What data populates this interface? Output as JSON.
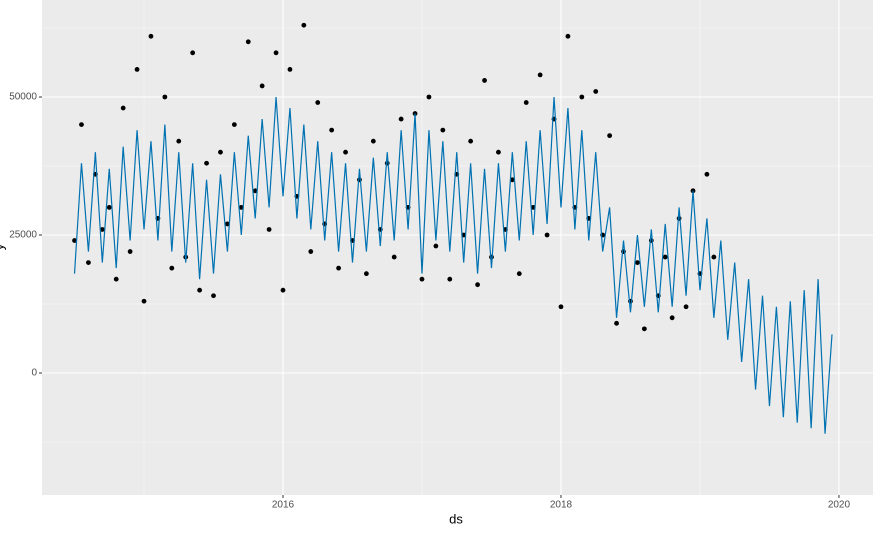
{
  "chart_data": {
    "type": "line",
    "xlabel": "ds",
    "ylabel": "y",
    "xlim": [
      2014.266,
      2020.245
    ],
    "xticks": [
      2016,
      2018,
      2020
    ],
    "ylim": [
      -22100,
      67570
    ],
    "yticks": [
      0,
      25000,
      50000
    ],
    "grid": true,
    "series": [
      {
        "type": "scatter",
        "color": "#000000",
        "x": [
          2014.5,
          2014.55,
          2014.6,
          2014.65,
          2014.7,
          2014.75,
          2014.8,
          2014.85,
          2014.9,
          2014.95,
          2015.0,
          2015.05,
          2015.1,
          2015.15,
          2015.2,
          2015.25,
          2015.3,
          2015.35,
          2015.4,
          2015.45,
          2015.5,
          2015.55,
          2015.6,
          2015.65,
          2015.7,
          2015.75,
          2015.8,
          2015.85,
          2015.9,
          2015.95,
          2016.0,
          2016.05,
          2016.1,
          2016.15,
          2016.2,
          2016.25,
          2016.3,
          2016.35,
          2016.4,
          2016.45,
          2016.5,
          2016.55,
          2016.6,
          2016.65,
          2016.7,
          2016.75,
          2016.8,
          2016.85,
          2016.9,
          2016.95,
          2017.0,
          2017.05,
          2017.1,
          2017.15,
          2017.2,
          2017.25,
          2017.3,
          2017.35,
          2017.4,
          2017.45,
          2017.5,
          2017.55,
          2017.6,
          2017.65,
          2017.7,
          2017.75,
          2017.8,
          2017.85,
          2017.9,
          2017.95,
          2018.0,
          2018.05,
          2018.1,
          2018.15,
          2018.2,
          2018.25,
          2018.3,
          2018.35,
          2018.4,
          2018.45,
          2018.5,
          2018.55,
          2018.6,
          2018.65,
          2018.7,
          2018.75,
          2018.8,
          2018.85,
          2018.9,
          2018.95,
          2019.0,
          2019.05,
          2019.1
        ],
        "values": [
          24000,
          45000,
          20000,
          36000,
          26000,
          30000,
          17000,
          48000,
          22000,
          55000,
          13000,
          61000,
          28000,
          50000,
          19000,
          42000,
          21000,
          58000,
          15000,
          38000,
          14000,
          40000,
          27000,
          45000,
          30000,
          60000,
          33000,
          52000,
          26000,
          58000,
          15000,
          55000,
          32000,
          63000,
          22000,
          49000,
          27000,
          44000,
          19000,
          40000,
          24000,
          35000,
          18000,
          42000,
          26000,
          38000,
          21000,
          46000,
          30000,
          47000,
          17000,
          50000,
          23000,
          44000,
          17000,
          36000,
          25000,
          42000,
          16000,
          53000,
          21000,
          40000,
          26000,
          35000,
          18000,
          49000,
          30000,
          54000,
          25000,
          46000,
          12000,
          61000,
          30000,
          50000,
          28000,
          51000,
          25000,
          43000,
          9000,
          22000,
          13000,
          20000,
          8000,
          24000,
          14000,
          21000,
          10000,
          28000,
          12000,
          33000,
          18000,
          36000,
          21000
        ]
      },
      {
        "type": "line",
        "color": "#0072B2",
        "x": [
          2014.5,
          2014.55,
          2014.6,
          2014.65,
          2014.7,
          2014.75,
          2014.8,
          2014.85,
          2014.9,
          2014.95,
          2015.0,
          2015.05,
          2015.1,
          2015.15,
          2015.2,
          2015.25,
          2015.3,
          2015.35,
          2015.4,
          2015.45,
          2015.5,
          2015.55,
          2015.6,
          2015.65,
          2015.7,
          2015.75,
          2015.8,
          2015.85,
          2015.9,
          2015.95,
          2016.0,
          2016.05,
          2016.1,
          2016.15,
          2016.2,
          2016.25,
          2016.3,
          2016.35,
          2016.4,
          2016.45,
          2016.5,
          2016.55,
          2016.6,
          2016.65,
          2016.7,
          2016.75,
          2016.8,
          2016.85,
          2016.9,
          2016.95,
          2017.0,
          2017.05,
          2017.1,
          2017.15,
          2017.2,
          2017.25,
          2017.3,
          2017.35,
          2017.4,
          2017.45,
          2017.5,
          2017.55,
          2017.6,
          2017.65,
          2017.7,
          2017.75,
          2017.8,
          2017.85,
          2017.9,
          2017.95,
          2018.0,
          2018.05,
          2018.1,
          2018.15,
          2018.2,
          2018.25,
          2018.3,
          2018.35,
          2018.4,
          2018.45,
          2018.5,
          2018.55,
          2018.6,
          2018.65,
          2018.7,
          2018.75,
          2018.8,
          2018.85,
          2018.9,
          2018.95,
          2019.0,
          2019.05,
          2019.1,
          2019.15,
          2019.2,
          2019.25,
          2019.3,
          2019.35,
          2019.4,
          2019.45,
          2019.5,
          2019.55,
          2019.6,
          2019.65,
          2019.7,
          2019.75,
          2019.8,
          2019.85,
          2019.9,
          2019.95
        ],
        "values": [
          18000,
          38000,
          22000,
          40000,
          20000,
          37000,
          19000,
          41000,
          24000,
          44000,
          26000,
          42000,
          24000,
          45000,
          22000,
          40000,
          20000,
          38000,
          17000,
          35000,
          18000,
          36000,
          22000,
          40000,
          25000,
          43000,
          28000,
          46000,
          30000,
          50000,
          32000,
          48000,
          28000,
          45000,
          26000,
          42000,
          24000,
          40000,
          22000,
          38000,
          20000,
          37000,
          22000,
          39000,
          23000,
          40000,
          24000,
          44000,
          26000,
          47000,
          18000,
          44000,
          24000,
          42000,
          22000,
          40000,
          20000,
          38000,
          18000,
          37000,
          19000,
          38000,
          22000,
          40000,
          24000,
          42000,
          25000,
          44000,
          27000,
          50000,
          30000,
          48000,
          26000,
          44000,
          24000,
          40000,
          22000,
          30000,
          10000,
          24000,
          11000,
          25000,
          12000,
          26000,
          11000,
          27000,
          12000,
          30000,
          14000,
          33000,
          15000,
          28000,
          10000,
          24000,
          6000,
          20000,
          2000,
          17000,
          -3000,
          14000,
          -6000,
          12000,
          -8000,
          13000,
          -9000,
          15000,
          -10000,
          17000,
          -11000,
          7000
        ]
      }
    ]
  }
}
